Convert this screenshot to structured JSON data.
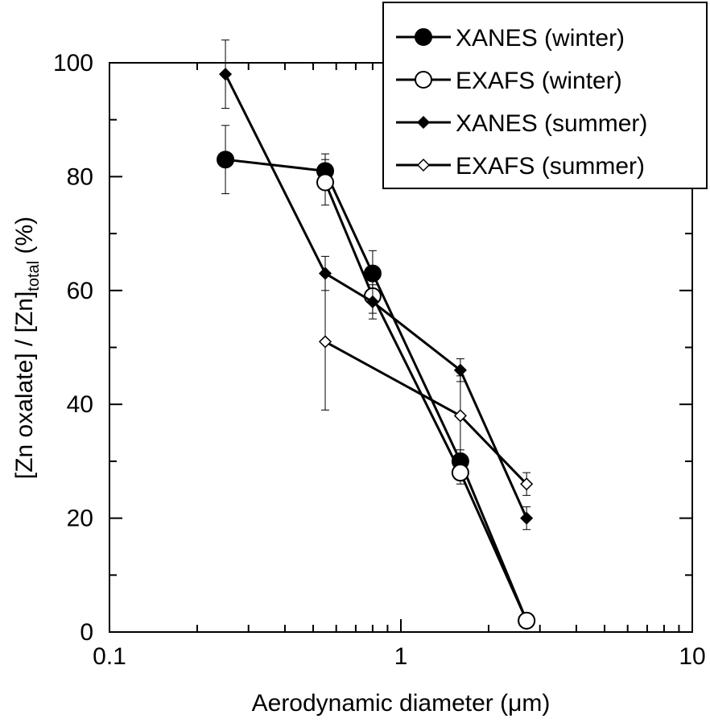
{
  "chart_data": {
    "type": "line",
    "xlabel": "Aerodynamic diameter (μm)",
    "ylabel": {
      "pre": "[Zn oxalate] / [Zn]",
      "sub": "total",
      "post": " (%)"
    },
    "xscale": "log",
    "xlim": [
      0.1,
      10
    ],
    "ylim": [
      0,
      100
    ],
    "xticks": [
      {
        "value": 0.1,
        "label": "0.1"
      },
      {
        "value": 1,
        "label": "1"
      },
      {
        "value": 10,
        "label": "10"
      }
    ],
    "yticks": [
      {
        "value": 0,
        "label": "0"
      },
      {
        "value": 20,
        "label": "20"
      },
      {
        "value": 40,
        "label": "40"
      },
      {
        "value": 60,
        "label": "60"
      },
      {
        "value": 80,
        "label": "80"
      },
      {
        "value": 100,
        "label": "100"
      }
    ],
    "grid": false,
    "legend_position": "top-right",
    "series": [
      {
        "name": "XANES (winter)",
        "marker": "circle",
        "fill": "#000000",
        "x": [
          0.25,
          0.55,
          0.8,
          1.6,
          2.7
        ],
        "y": [
          83,
          81,
          63,
          30,
          2
        ],
        "err": [
          6,
          3,
          4,
          2,
          0
        ]
      },
      {
        "name": "EXAFS (winter)",
        "marker": "circle",
        "fill": "#ffffff",
        "x": [
          0.55,
          0.8,
          1.6,
          2.7
        ],
        "y": [
          79,
          59,
          28,
          2
        ],
        "err": [
          4,
          3,
          2,
          0
        ]
      },
      {
        "name": "XANES (summer)",
        "marker": "diamond",
        "fill": "#000000",
        "x": [
          0.25,
          0.55,
          0.8,
          1.6,
          2.7
        ],
        "y": [
          98,
          63,
          58,
          46,
          20
        ],
        "err": [
          6,
          3,
          3,
          2,
          2
        ]
      },
      {
        "name": "EXAFS (summer)",
        "marker": "diamond",
        "fill": "#ffffff",
        "x": [
          0.55,
          1.6,
          2.7
        ],
        "y": [
          51,
          38,
          26
        ],
        "err": [
          12,
          7,
          2
        ]
      }
    ]
  }
}
